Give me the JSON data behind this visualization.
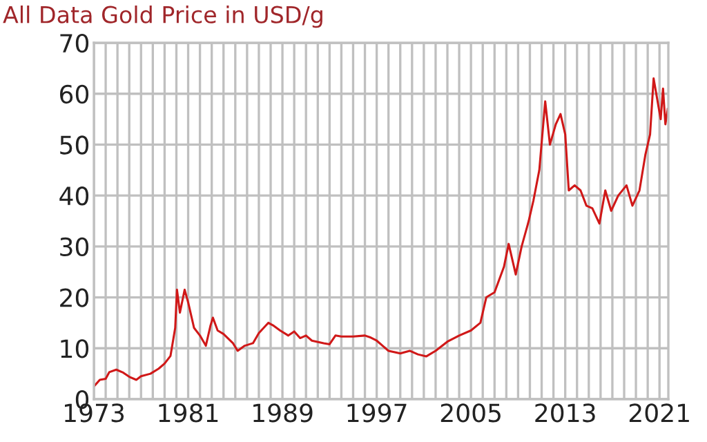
{
  "chart_data": {
    "type": "line",
    "title": "All Data Gold Price in USD/g",
    "xlim": [
      1973,
      2021.75
    ],
    "ylim": [
      0,
      70
    ],
    "yticks": [
      0,
      10,
      20,
      30,
      40,
      50,
      60,
      70
    ],
    "xticks": [
      1973,
      {
        "value": 1974,
        "label": null
      },
      {
        "value": 1975,
        "label": null
      },
      {
        "value": 1976,
        "label": null
      },
      {
        "value": 1977,
        "label": null
      },
      {
        "value": 1978,
        "label": null
      },
      {
        "value": 1979,
        "label": null
      },
      {
        "value": 1980,
        "label": null
      },
      1981,
      {
        "value": 1982,
        "label": null
      },
      {
        "value": 1983,
        "label": null
      },
      {
        "value": 1984,
        "label": null
      },
      {
        "value": 1985,
        "label": null
      },
      {
        "value": 1986,
        "label": null
      },
      {
        "value": 1987,
        "label": null
      },
      {
        "value": 1988,
        "label": null
      },
      1989,
      {
        "value": 1990,
        "label": null
      },
      {
        "value": 1991,
        "label": null
      },
      {
        "value": 1992,
        "label": null
      },
      {
        "value": 1993,
        "label": null
      },
      {
        "value": 1994,
        "label": null
      },
      {
        "value": 1995,
        "label": null
      },
      {
        "value": 1996,
        "label": null
      },
      1997,
      {
        "value": 1998,
        "label": null
      },
      {
        "value": 1999,
        "label": null
      },
      {
        "value": 2000,
        "label": null
      },
      {
        "value": 2001,
        "label": null
      },
      {
        "value": 2002,
        "label": null
      },
      {
        "value": 2003,
        "label": null
      },
      {
        "value": 2004,
        "label": null
      },
      2005,
      {
        "value": 2006,
        "label": null
      },
      {
        "value": 2007,
        "label": null
      },
      {
        "value": 2008,
        "label": null
      },
      {
        "value": 2009,
        "label": null
      },
      {
        "value": 2010,
        "label": null
      },
      {
        "value": 2011,
        "label": null
      },
      {
        "value": 2012,
        "label": null
      },
      2013,
      {
        "value": 2014,
        "label": null
      },
      {
        "value": 2015,
        "label": null
      },
      {
        "value": 2016,
        "label": null
      },
      {
        "value": 2017,
        "label": null
      },
      {
        "value": 2018,
        "label": null
      },
      {
        "value": 2019,
        "label": null
      },
      {
        "value": 2020,
        "label": null
      },
      2021
    ],
    "grid": true,
    "legend": false,
    "marker": "none",
    "line_style": "solid",
    "series": [
      {
        "color": "#d01818",
        "x": [
          1973.0,
          1973.5,
          1974.0,
          1974.3,
          1974.9,
          1975.5,
          1976.0,
          1976.6,
          1977.0,
          1977.8,
          1978.5,
          1979.0,
          1979.5,
          1979.9,
          1980.05,
          1980.3,
          1980.7,
          1981.0,
          1981.5,
          1982.0,
          1982.5,
          1982.9,
          1983.1,
          1983.5,
          1984.0,
          1984.8,
          1985.2,
          1985.8,
          1986.5,
          1987.0,
          1987.8,
          1988.2,
          1988.8,
          1989.5,
          1990.0,
          1990.5,
          1991.0,
          1991.5,
          1992.5,
          1993.0,
          1993.5,
          1994.0,
          1995.0,
          1996.0,
          1996.5,
          1997.0,
          1997.5,
          1998.0,
          1999.0,
          1999.8,
          2000.5,
          2001.2,
          2002.0,
          2003.0,
          2004.0,
          2005.0,
          2005.8,
          2006.3,
          2007.0,
          2007.8,
          2008.2,
          2008.8,
          2009.3,
          2009.9,
          2010.3,
          2010.8,
          2011.3,
          2011.7,
          2012.2,
          2012.6,
          2013.0,
          2013.3,
          2013.8,
          2014.3,
          2014.8,
          2015.3,
          2015.9,
          2016.4,
          2016.9,
          2017.5,
          2018.2,
          2018.7,
          2019.3,
          2019.8,
          2020.2,
          2020.5,
          2020.8,
          2021.1,
          2021.3,
          2021.5,
          2021.7
        ],
        "values": [
          2.5,
          3.8,
          4.0,
          5.3,
          5.8,
          5.2,
          4.4,
          3.8,
          4.5,
          5.0,
          6.0,
          7.0,
          8.5,
          14,
          21.5,
          17,
          21.5,
          19,
          14,
          12.5,
          10.5,
          14.5,
          16,
          13.5,
          12.8,
          11,
          9.5,
          10.5,
          11,
          13,
          15,
          14.5,
          13.5,
          12.5,
          13.3,
          12,
          12.5,
          11.5,
          11,
          10.8,
          12.5,
          12.3,
          12.3,
          12.5,
          12.1,
          11.5,
          10.5,
          9.5,
          9.0,
          9.5,
          8.8,
          8.4,
          9.5,
          11.3,
          12.5,
          13.5,
          15,
          20,
          21,
          26,
          30.5,
          24.5,
          30,
          35,
          39,
          45,
          58.5,
          50,
          54,
          56,
          52,
          41,
          42,
          41,
          38,
          37.5,
          34.5,
          41,
          37,
          40,
          42,
          38,
          41,
          48,
          52,
          63,
          59,
          55,
          61,
          54,
          57
        ]
      }
    ]
  }
}
